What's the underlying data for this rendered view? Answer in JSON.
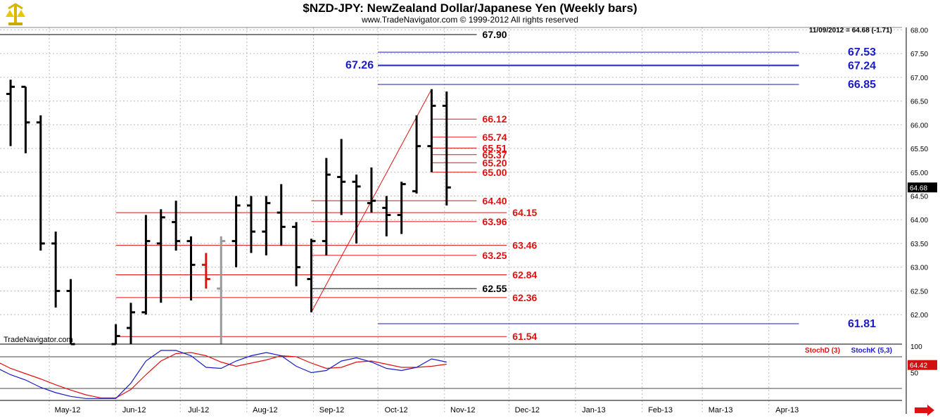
{
  "header": {
    "title": "$NZD-JPY:  NewZealand Dollar/Japanese Yen  (Weekly bars)",
    "subtitle": "www.TradeNavigator.com © 1999-2012 All rights reserved",
    "last_bar_readout": "11/09/2012 = 64.68 (-1.71)",
    "watermark": "TradeNavigator.com"
  },
  "chart_data": [
    {
      "type": "ohlc",
      "title": "$NZD-JPY:  NewZealand Dollar/Japanese Yen  (Weekly bars)",
      "ylim": [
        61.38,
        68.05
      ],
      "y_ticks": [
        "68.00",
        "67.50",
        "67.00",
        "66.50",
        "66.00",
        "65.50",
        "65.00",
        "64.50",
        "64.00",
        "63.50",
        "63.00",
        "62.50",
        "62.00"
      ],
      "x_ticks": [
        "May-12",
        "Jun-12",
        "Jul-12",
        "Aug-12",
        "Sep-12",
        "Oct-12",
        "Nov-12",
        "Dec-12",
        "Jan-13",
        "Feb-13",
        "Mar-13",
        "Apr-13"
      ],
      "last_price": "64.68",
      "bars": [
        {
          "date": "2012-04-06",
          "o": 66.95,
          "h": 67.48,
          "l": 65.55,
          "c": 66.65,
          "color": "#000000"
        },
        {
          "date": "2012-04-13",
          "o": 66.65,
          "h": 66.95,
          "l": 65.55,
          "c": 66.8,
          "color": "#000000"
        },
        {
          "date": "2012-04-20",
          "o": 66.8,
          "h": 66.8,
          "l": 65.4,
          "c": 66.05,
          "color": "#000000"
        },
        {
          "date": "2012-04-27",
          "o": 66.05,
          "h": 66.2,
          "l": 63.35,
          "c": 63.5,
          "color": "#000000"
        },
        {
          "date": "2012-05-04",
          "o": 63.5,
          "h": 63.75,
          "l": 62.15,
          "c": 62.5,
          "color": "#000000"
        },
        {
          "date": "2012-05-11",
          "o": 62.5,
          "h": 62.75,
          "l": 61.38,
          "c": 61.38,
          "color": "#000000"
        },
        {
          "date": "2012-06-01",
          "o": 61.38,
          "h": 61.8,
          "l": 61.38,
          "c": 61.55,
          "color": "#000000"
        },
        {
          "date": "2012-06-08",
          "o": 61.72,
          "h": 62.25,
          "l": 61.38,
          "c": 62.05,
          "color": "#000000"
        },
        {
          "date": "2012-06-15",
          "o": 62.05,
          "h": 64.1,
          "l": 62.0,
          "c": 63.55,
          "color": "#000000"
        },
        {
          "date": "2012-06-22",
          "o": 63.5,
          "h": 64.22,
          "l": 62.25,
          "c": 64.05,
          "color": "#000000"
        },
        {
          "date": "2012-06-29",
          "o": 63.95,
          "h": 64.4,
          "l": 63.35,
          "c": 63.55,
          "color": "#000000"
        },
        {
          "date": "2012-07-06",
          "o": 63.55,
          "h": 63.65,
          "l": 62.3,
          "c": 63.05,
          "color": "#000000"
        },
        {
          "date": "2012-07-13",
          "o": 63.05,
          "h": 63.3,
          "l": 62.55,
          "c": 62.75,
          "color": "#e01010"
        },
        {
          "date": "2012-07-20",
          "o": 62.55,
          "h": 63.65,
          "l": 61.38,
          "c": 63.55,
          "color": "#999999"
        },
        {
          "date": "2012-07-27",
          "o": 63.55,
          "h": 64.5,
          "l": 63.0,
          "c": 64.3,
          "color": "#000000"
        },
        {
          "date": "2012-08-03",
          "o": 64.3,
          "h": 64.5,
          "l": 63.3,
          "c": 63.75,
          "color": "#000000"
        },
        {
          "date": "2012-08-10",
          "o": 63.75,
          "h": 64.5,
          "l": 63.25,
          "c": 64.35,
          "color": "#000000"
        },
        {
          "date": "2012-08-17",
          "o": 64.15,
          "h": 64.75,
          "l": 63.45,
          "c": 63.85,
          "color": "#000000"
        },
        {
          "date": "2012-08-24",
          "o": 63.85,
          "h": 63.95,
          "l": 62.6,
          "c": 63.0,
          "color": "#000000"
        },
        {
          "date": "2012-08-31",
          "o": 62.75,
          "h": 63.6,
          "l": 62.05,
          "c": 63.55,
          "color": "#000000"
        },
        {
          "date": "2012-09-07",
          "o": 63.55,
          "h": 65.3,
          "l": 63.25,
          "c": 64.95,
          "color": "#000000"
        },
        {
          "date": "2012-09-14",
          "o": 64.9,
          "h": 65.7,
          "l": 64.1,
          "c": 64.8,
          "color": "#000000"
        },
        {
          "date": "2012-09-21",
          "o": 64.8,
          "h": 64.95,
          "l": 63.5,
          "c": 64.7,
          "color": "#000000"
        },
        {
          "date": "2012-09-28",
          "o": 64.35,
          "h": 65.1,
          "l": 64.15,
          "c": 64.4,
          "color": "#000000"
        },
        {
          "date": "2012-10-05",
          "o": 64.25,
          "h": 64.5,
          "l": 63.65,
          "c": 64.1,
          "color": "#000000"
        },
        {
          "date": "2012-10-12",
          "o": 64.1,
          "h": 64.8,
          "l": 63.7,
          "c": 64.75,
          "color": "#000000"
        },
        {
          "date": "2012-10-19",
          "o": 64.6,
          "h": 66.2,
          "l": 64.55,
          "c": 65.55,
          "color": "#000000"
        },
        {
          "date": "2012-10-26",
          "o": 65.55,
          "h": 66.75,
          "l": 65.0,
          "c": 66.4,
          "color": "#000000"
        },
        {
          "date": "2012-11-02",
          "o": 66.4,
          "h": 66.7,
          "l": 64.3,
          "c": 64.68,
          "color": "#000000"
        }
      ],
      "levels": [
        {
          "value": 67.9,
          "label": "67.90",
          "color": "#000000",
          "from": "2012-04-01",
          "to": "2012-11-16"
        },
        {
          "value": 67.53,
          "label": "67.53",
          "color": "#1a1ac8",
          "from": "2012-10-01",
          "to": "2013-04-15"
        },
        {
          "value": 67.26,
          "label": "67.26",
          "color": "#1a1ac8",
          "from": "2012-10-01",
          "to": "2013-04-15"
        },
        {
          "value": 67.24,
          "label": "67.24",
          "color": "#1a1ac8",
          "from": "2012-10-01",
          "to": "2013-04-15"
        },
        {
          "value": 66.85,
          "label": "66.85",
          "color": "#1a1ac8",
          "from": "2012-10-01",
          "to": "2013-04-15"
        },
        {
          "value": 66.12,
          "label": "66.12",
          "color": "#e01010",
          "from": "2012-10-26",
          "to": "2012-11-16"
        },
        {
          "value": 65.74,
          "label": "65.74",
          "color": "#e01010",
          "from": "2012-10-26",
          "to": "2012-11-16"
        },
        {
          "value": 65.51,
          "label": "65.51",
          "color": "#e01010",
          "from": "2012-10-26",
          "to": "2012-11-16"
        },
        {
          "value": 65.37,
          "label": "65.37",
          "color": "#e01010",
          "from": "2012-10-26",
          "to": "2012-11-16"
        },
        {
          "value": 65.2,
          "label": "65.20",
          "color": "#e01010",
          "from": "2012-10-26",
          "to": "2012-11-16"
        },
        {
          "value": 65.0,
          "label": "65.00",
          "color": "#e01010",
          "from": "2012-10-26",
          "to": "2012-11-16"
        },
        {
          "value": 64.4,
          "label": "64.40",
          "color": "#e01010",
          "from": "2012-08-31",
          "to": "2012-11-16"
        },
        {
          "value": 64.15,
          "label": "64.15",
          "color": "#e01010",
          "from": "2012-06-01",
          "to": "2012-11-30"
        },
        {
          "value": 63.96,
          "label": "63.96",
          "color": "#e01010",
          "from": "2012-08-31",
          "to": "2012-11-16"
        },
        {
          "value": 63.46,
          "label": "63.46",
          "color": "#e01010",
          "from": "2012-06-01",
          "to": "2012-11-30"
        },
        {
          "value": 63.25,
          "label": "63.25",
          "color": "#e01010",
          "from": "2012-08-31",
          "to": "2012-11-16"
        },
        {
          "value": 62.84,
          "label": "62.84",
          "color": "#e01010",
          "from": "2012-06-01",
          "to": "2012-11-30"
        },
        {
          "value": 62.55,
          "label": "62.55",
          "color": "#000000",
          "from": "2012-08-31",
          "to": "2012-11-16"
        },
        {
          "value": 62.36,
          "label": "62.36",
          "color": "#e01010",
          "from": "2012-06-01",
          "to": "2012-11-30"
        },
        {
          "value": 61.81,
          "label": "61.81",
          "color": "#1a1ac8",
          "from": "2012-10-01",
          "to": "2013-04-15"
        },
        {
          "value": 61.54,
          "label": "61.54",
          "color": "#e01010",
          "from": "2012-06-01",
          "to": "2012-11-30"
        }
      ],
      "trendline": {
        "from": {
          "date": "2012-08-31",
          "value": 62.05
        },
        "to": {
          "date": "2012-10-26",
          "value": 66.75
        },
        "color": "#e01010"
      }
    },
    {
      "type": "line",
      "ylim": [
        0,
        100
      ],
      "y_ticks": [
        "100",
        "50"
      ],
      "reference_lines": [
        80,
        20
      ],
      "last_value": "64.42",
      "x": [
        "2012-04-06",
        "2012-04-13",
        "2012-04-20",
        "2012-04-27",
        "2012-05-04",
        "2012-05-11",
        "2012-05-18",
        "2012-05-25",
        "2012-06-01",
        "2012-06-08",
        "2012-06-15",
        "2012-06-22",
        "2012-06-29",
        "2012-07-06",
        "2012-07-13",
        "2012-07-20",
        "2012-07-27",
        "2012-08-03",
        "2012-08-10",
        "2012-08-17",
        "2012-08-24",
        "2012-08-31",
        "2012-09-07",
        "2012-09-14",
        "2012-09-21",
        "2012-09-28",
        "2012-10-05",
        "2012-10-12",
        "2012-10-19",
        "2012-10-26",
        "2012-11-02"
      ],
      "series": [
        {
          "name": "StochD (3)",
          "color": "#e01010",
          "values": [
            72,
            58,
            48,
            38,
            27,
            17,
            8,
            2,
            2,
            18,
            46,
            72,
            86,
            88,
            82,
            70,
            62,
            68,
            74,
            82,
            80,
            68,
            58,
            60,
            70,
            72,
            66,
            60,
            60,
            62,
            66
          ]
        },
        {
          "name": "StochK (5,3)",
          "color": "#1a1ac8",
          "values": [
            60,
            46,
            36,
            22,
            12,
            5,
            1,
            1,
            1,
            30,
            72,
            92,
            92,
            82,
            60,
            58,
            72,
            82,
            88,
            82,
            62,
            50,
            54,
            72,
            78,
            70,
            58,
            54,
            60,
            76,
            70
          ]
        }
      ]
    }
  ]
}
